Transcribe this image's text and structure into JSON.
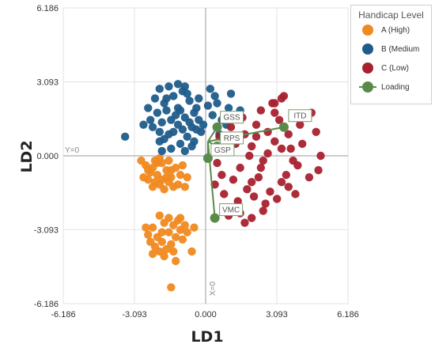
{
  "chart_data": {
    "type": "scatter",
    "title": "",
    "xlabel": "LD1",
    "ylabel": "LD2",
    "xlim": [
      -6.186,
      6.186
    ],
    "ylim": [
      -6.186,
      6.186
    ],
    "xticks": [
      "-6.186",
      "-3.093",
      "0.000",
      "3.093",
      "6.186"
    ],
    "yticks": [
      "6.186",
      "3.093",
      "0.000",
      "-3.093",
      "-6.186"
    ],
    "grid": true,
    "reference_lines": {
      "y0_label": "Y=0",
      "x0_label": "X=0"
    },
    "legend": {
      "title": "Handicap Level",
      "placement": "top-right",
      "entries": [
        "A (High)",
        "B (Medium",
        "C (Low)",
        "Loading"
      ]
    },
    "colors": {
      "A": "#f0891f",
      "B": "#1f5c8b",
      "C": "#a8212f",
      "Loading": "#5a8a4a"
    },
    "series": [
      {
        "name": "A (High)",
        "points": [
          [
            -2.3,
            -0.5
          ],
          [
            -2.1,
            -0.8
          ],
          [
            -1.9,
            -0.3
          ],
          [
            -2.5,
            -1.0
          ],
          [
            -1.7,
            -0.6
          ],
          [
            -2.0,
            -1.2
          ],
          [
            -1.5,
            -0.9
          ],
          [
            -2.6,
            -0.4
          ],
          [
            -1.8,
            -1.4
          ],
          [
            -2.2,
            -1.1
          ],
          [
            -1.6,
            -0.2
          ],
          [
            -2.4,
            -0.7
          ],
          [
            -1.9,
            -1.0
          ],
          [
            -1.4,
            -1.3
          ],
          [
            -2.0,
            -0.1
          ],
          [
            -1.3,
            -0.5
          ],
          [
            -2.7,
            -0.9
          ],
          [
            -1.6,
            -1.1
          ],
          [
            -2.3,
            -1.3
          ],
          [
            -1.1,
            -0.8
          ],
          [
            -1.0,
            -0.4
          ],
          [
            -0.8,
            -0.9
          ],
          [
            -1.2,
            -1.2
          ],
          [
            -2.1,
            -0.3
          ],
          [
            -1.7,
            -0.9
          ],
          [
            -2.5,
            -0.6
          ],
          [
            -1.5,
            -0.6
          ],
          [
            -0.9,
            -1.3
          ],
          [
            -2.8,
            -0.2
          ],
          [
            -2.2,
            -0.2
          ],
          [
            -2.0,
            -2.5
          ],
          [
            -1.8,
            -2.8
          ],
          [
            -2.3,
            -3.0
          ],
          [
            -1.6,
            -3.2
          ],
          [
            -2.1,
            -3.4
          ],
          [
            -1.4,
            -2.9
          ],
          [
            -2.5,
            -3.3
          ],
          [
            -1.9,
            -3.6
          ],
          [
            -1.3,
            -3.4
          ],
          [
            -2.2,
            -3.8
          ],
          [
            -1.7,
            -3.9
          ],
          [
            -1.1,
            -3.1
          ],
          [
            -2.6,
            -3.0
          ],
          [
            -1.5,
            -3.7
          ],
          [
            -2.0,
            -4.0
          ],
          [
            -1.2,
            -2.7
          ],
          [
            -2.4,
            -3.6
          ],
          [
            -1.8,
            -4.2
          ],
          [
            -1.0,
            -3.5
          ],
          [
            -0.9,
            -2.9
          ],
          [
            -1.6,
            -2.6
          ],
          [
            -2.3,
            -4.1
          ],
          [
            -1.4,
            -4.0
          ],
          [
            -0.8,
            -3.2
          ],
          [
            -1.1,
            -2.6
          ],
          [
            -1.5,
            -5.5
          ],
          [
            -0.5,
            -3.0
          ],
          [
            -0.6,
            -4.0
          ],
          [
            -1.9,
            -3.2
          ],
          [
            -1.3,
            -4.4
          ]
        ]
      },
      {
        "name": "B (Medium",
        "points": [
          [
            -2.1,
            1.8
          ],
          [
            -1.8,
            2.2
          ],
          [
            -1.5,
            1.5
          ],
          [
            -2.3,
            1.2
          ],
          [
            -1.2,
            2.0
          ],
          [
            -0.9,
            1.6
          ],
          [
            -1.6,
            0.9
          ],
          [
            -2.0,
            0.6
          ],
          [
            -1.0,
            1.1
          ],
          [
            -0.7,
            2.3
          ],
          [
            -1.4,
            2.5
          ],
          [
            -0.5,
            1.8
          ],
          [
            -1.9,
            1.4
          ],
          [
            -1.1,
            0.5
          ],
          [
            -0.8,
            0.8
          ],
          [
            -1.7,
            1.9
          ],
          [
            -0.6,
            1.2
          ],
          [
            -1.3,
            1.7
          ],
          [
            -0.4,
            2.0
          ],
          [
            -2.2,
            2.4
          ],
          [
            -1.0,
            2.7
          ],
          [
            -0.3,
            1.5
          ],
          [
            -1.5,
            0.3
          ],
          [
            -0.9,
            0.2
          ],
          [
            -0.5,
            0.6
          ],
          [
            -1.8,
            0.7
          ],
          [
            -0.2,
            1.0
          ],
          [
            -1.2,
            1.3
          ],
          [
            -0.7,
            1.4
          ],
          [
            -2.0,
            1.0
          ],
          [
            -2.5,
            2.0
          ],
          [
            -1.6,
            2.9
          ],
          [
            -0.8,
            2.6
          ],
          [
            -0.3,
            2.4
          ],
          [
            -2.4,
            1.5
          ],
          [
            -1.4,
            1.0
          ],
          [
            -0.6,
            0.4
          ],
          [
            -1.1,
            1.9
          ],
          [
            -0.4,
            1.1
          ],
          [
            -1.7,
            2.4
          ],
          [
            0.3,
            1.7
          ],
          [
            0.5,
            2.2
          ],
          [
            0.7,
            1.5
          ],
          [
            1.0,
            2.0
          ],
          [
            0.2,
            2.8
          ],
          [
            0.6,
            0.9
          ],
          [
            0.9,
            1.3
          ],
          [
            1.3,
            1.6
          ],
          [
            0.4,
            2.5
          ],
          [
            1.1,
            2.6
          ],
          [
            0.8,
            0.6
          ],
          [
            1.5,
            1.9
          ],
          [
            -3.5,
            0.8
          ],
          [
            -2.7,
            1.3
          ],
          [
            -2.0,
            2.8
          ],
          [
            -1.2,
            3.0
          ],
          [
            0.1,
            2.1
          ],
          [
            -0.1,
            1.3
          ],
          [
            -1.9,
            0.2
          ],
          [
            -0.9,
            2.9
          ]
        ]
      },
      {
        "name": "C (Low)",
        "points": [
          [
            0.5,
            -0.3
          ],
          [
            1.0,
            0.2
          ],
          [
            1.5,
            -0.5
          ],
          [
            2.0,
            0.4
          ],
          [
            2.5,
            -0.2
          ],
          [
            3.0,
            0.6
          ],
          [
            3.5,
            -0.8
          ],
          [
            1.2,
            -1.0
          ],
          [
            1.8,
            -1.4
          ],
          [
            2.3,
            -0.9
          ],
          [
            2.8,
            -1.5
          ],
          [
            3.3,
            -1.1
          ],
          [
            0.8,
            -1.6
          ],
          [
            1.4,
            -1.9
          ],
          [
            2.1,
            -1.7
          ],
          [
            2.6,
            -2.0
          ],
          [
            3.1,
            -1.8
          ],
          [
            0.6,
            0.8
          ],
          [
            1.1,
            1.2
          ],
          [
            1.7,
            0.9
          ],
          [
            2.2,
            1.3
          ],
          [
            2.7,
            1.0
          ],
          [
            3.2,
            1.5
          ],
          [
            3.7,
            0.3
          ],
          [
            4.0,
            -0.4
          ],
          [
            1.6,
            1.6
          ],
          [
            2.4,
            1.9
          ],
          [
            3.0,
            1.8
          ],
          [
            0.9,
            -2.2
          ],
          [
            1.5,
            -2.4
          ],
          [
            2.0,
            -2.6
          ],
          [
            2.5,
            -2.3
          ],
          [
            3.6,
            0.9
          ],
          [
            4.2,
            0.5
          ],
          [
            4.5,
            -0.9
          ],
          [
            4.8,
            1.0
          ],
          [
            2.9,
            2.2
          ],
          [
            3.4,
            2.5
          ],
          [
            3.0,
            2.2
          ],
          [
            3.3,
            2.4
          ],
          [
            1.3,
            0.5
          ],
          [
            2.0,
            -1.1
          ],
          [
            2.7,
            0.1
          ],
          [
            3.3,
            0.3
          ],
          [
            0.7,
            -0.8
          ],
          [
            1.9,
            0.0
          ],
          [
            2.4,
            -0.5
          ],
          [
            3.8,
            -0.2
          ],
          [
            4.1,
            1.3
          ],
          [
            4.4,
            1.6
          ],
          [
            4.6,
            1.8
          ],
          [
            5.0,
            0.0
          ],
          [
            4.9,
            -0.6
          ],
          [
            1.0,
            -2.5
          ],
          [
            1.7,
            -2.8
          ],
          [
            0.4,
            -1.2
          ],
          [
            2.2,
            0.8
          ],
          [
            3.6,
            -1.3
          ],
          [
            3.9,
            -1.6
          ],
          [
            0.8,
            0.3
          ]
        ]
      }
    ],
    "loadings": [
      {
        "name": "ITD",
        "x": 3.4,
        "y": 1.2
      },
      {
        "name": "GSS",
        "x": 0.5,
        "y": 1.2
      },
      {
        "name": "RPS",
        "x": 0.5,
        "y": 0.4
      },
      {
        "name": "GSP",
        "x": 0.1,
        "y": -0.1
      },
      {
        "name": "VMC",
        "x": 0.4,
        "y": -2.6
      }
    ]
  }
}
